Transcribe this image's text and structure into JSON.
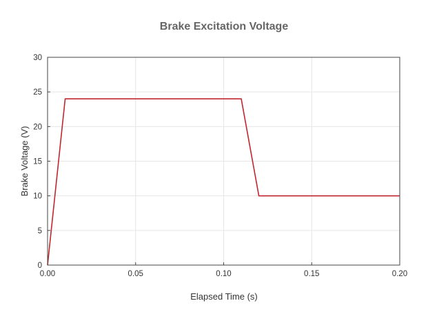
{
  "chart_data": {
    "type": "line",
    "title": "Brake Excitation Voltage",
    "xlabel": "Elapsed Time (s)",
    "ylabel": "Brake Voltage (V)",
    "xlim": [
      0.0,
      0.2
    ],
    "ylim": [
      0,
      30
    ],
    "xticks": [
      "0.00",
      "0.05",
      "0.10",
      "0.15",
      "0.20"
    ],
    "yticks": [
      "0",
      "5",
      "10",
      "15",
      "20",
      "25",
      "30"
    ],
    "grid": true,
    "series": [
      {
        "color": "#c0262d",
        "x": [
          0.0,
          0.01,
          0.11,
          0.12,
          0.2
        ],
        "y": [
          0,
          24,
          24,
          10,
          10
        ]
      }
    ]
  }
}
